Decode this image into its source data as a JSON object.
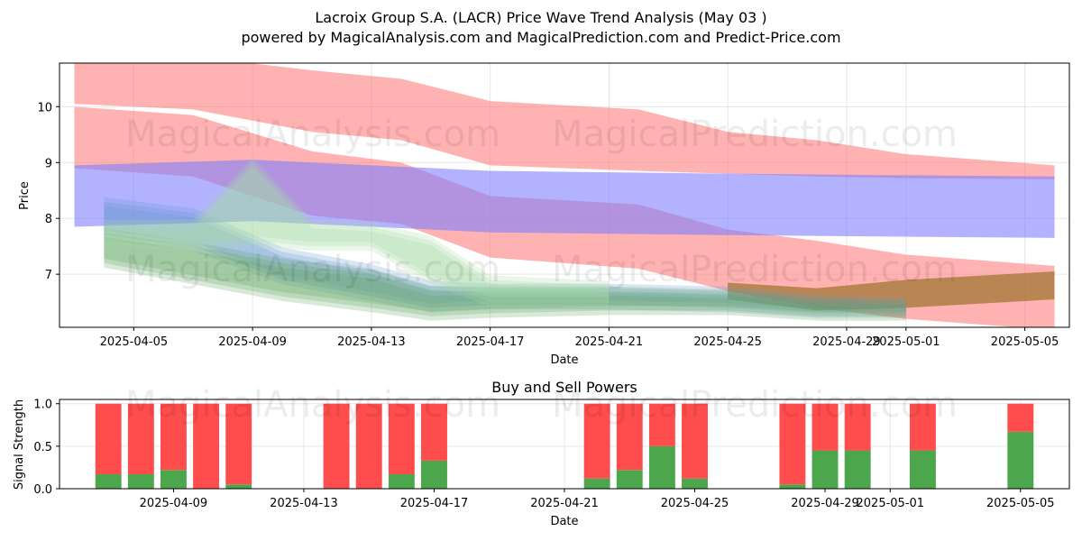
{
  "figure": {
    "title_line1": "Lacroix Group S.A. (LACR) Price Wave Trend Analysis (May 03 )",
    "title_line2": "powered by MagicalAnalysis.com and MagicalPrediction.com and Predict-Price.com",
    "watermarks": [
      "MagicalAnalysis.com",
      "MagicalPrediction.com"
    ]
  },
  "chart_data": [
    {
      "type": "area",
      "title": "",
      "xlabel": "Date",
      "ylabel": "Price",
      "xlim": [
        "2025-04-02T12:00",
        "2025-05-06T12:00"
      ],
      "ylim": [
        6.05,
        10.78
      ],
      "yticks": [
        7,
        8,
        9,
        10
      ],
      "xticks": [
        "2025-04-05",
        "2025-04-09",
        "2025-04-13",
        "2025-04-17",
        "2025-04-21",
        "2025-04-25",
        "2025-04-29",
        "2025-05-01",
        "2025-05-05"
      ],
      "grid": true,
      "bands": [
        {
          "color": "#ff7f7f",
          "opacity": 0.6,
          "x": [
            "2025-04-03",
            "2025-04-07",
            "2025-04-11",
            "2025-04-14",
            "2025-04-17",
            "2025-04-22",
            "2025-04-25",
            "2025-04-28",
            "2025-05-01",
            "2025-05-06"
          ],
          "upper": [
            10.85,
            10.9,
            10.65,
            10.5,
            10.1,
            9.95,
            9.55,
            9.4,
            9.15,
            8.95
          ],
          "lower": [
            10.05,
            9.95,
            9.55,
            9.4,
            8.95,
            8.85,
            8.8,
            8.75,
            8.72,
            8.7
          ]
        },
        {
          "color": "#ff7f7f",
          "opacity": 0.6,
          "x": [
            "2025-04-03",
            "2025-04-07",
            "2025-04-11",
            "2025-04-14",
            "2025-04-17",
            "2025-04-22",
            "2025-04-25",
            "2025-04-28",
            "2025-05-01",
            "2025-05-06"
          ],
          "upper": [
            10.0,
            9.85,
            9.2,
            9.0,
            8.4,
            8.25,
            7.8,
            7.6,
            7.35,
            7.15
          ],
          "lower": [
            8.9,
            8.75,
            8.05,
            7.9,
            7.3,
            7.1,
            6.7,
            6.4,
            6.2,
            6.0
          ]
        },
        {
          "color": "#7f7fff",
          "opacity": 0.6,
          "x": [
            "2025-04-03",
            "2025-04-09",
            "2025-04-17",
            "2025-04-25",
            "2025-05-06"
          ],
          "upper": [
            8.95,
            9.05,
            8.85,
            8.8,
            8.75
          ],
          "lower": [
            7.85,
            7.95,
            7.75,
            7.7,
            7.65
          ]
        },
        {
          "color": "#8b6914",
          "opacity": 0.6,
          "x": [
            "2025-04-25",
            "2025-04-28",
            "2025-05-01",
            "2025-05-06"
          ],
          "upper": [
            6.85,
            6.75,
            6.9,
            7.05
          ],
          "lower": [
            6.55,
            6.35,
            6.4,
            6.55
          ]
        }
      ],
      "wave_bands": [
        {
          "color": "#6699cc",
          "opacity": 0.35,
          "x": [
            "2025-04-04",
            "2025-04-07",
            "2025-04-10",
            "2025-04-13",
            "2025-04-15",
            "2025-04-17",
            "2025-04-21",
            "2025-04-25",
            "2025-04-28",
            "2025-05-01"
          ],
          "upper": [
            8.3,
            8.1,
            7.4,
            7.1,
            6.8,
            6.75,
            6.75,
            6.7,
            6.55,
            6.5
          ],
          "lower": [
            7.7,
            7.5,
            6.9,
            6.6,
            6.4,
            6.45,
            6.45,
            6.4,
            6.3,
            6.3
          ]
        },
        {
          "color": "#5fa35f",
          "opacity": 0.35,
          "x": [
            "2025-04-04",
            "2025-04-07",
            "2025-04-10",
            "2025-04-13",
            "2025-04-15",
            "2025-04-17",
            "2025-04-21",
            "2025-04-25",
            "2025-04-28",
            "2025-05-01"
          ],
          "upper": [
            7.75,
            7.5,
            7.2,
            7.0,
            6.7,
            6.7,
            6.7,
            6.65,
            6.5,
            6.45
          ],
          "lower": [
            7.2,
            6.9,
            6.6,
            6.4,
            6.25,
            6.3,
            6.35,
            6.35,
            6.25,
            6.25
          ]
        },
        {
          "color": "#a6d9a6",
          "opacity": 0.35,
          "x": [
            "2025-04-04",
            "2025-04-07",
            "2025-04-09",
            "2025-04-11",
            "2025-04-13",
            "2025-04-15",
            "2025-04-17",
            "2025-04-21"
          ],
          "upper": [
            7.9,
            7.9,
            9.0,
            7.9,
            7.85,
            7.6,
            6.9,
            6.8
          ],
          "lower": [
            7.6,
            7.5,
            7.6,
            7.5,
            7.5,
            6.9,
            6.5,
            6.5
          ]
        }
      ]
    },
    {
      "type": "bar",
      "title": "Buy and Sell Powers",
      "xlabel": "Date",
      "ylabel": "Signal Strength",
      "xlim": [
        "2025-04-05T12:00",
        "2025-05-06T12:00"
      ],
      "ylim": [
        0,
        1.05
      ],
      "yticks": [
        "0.0",
        "0.5",
        "1.0"
      ],
      "xticks": [
        "2025-04-09",
        "2025-04-13",
        "2025-04-17",
        "2025-04-21",
        "2025-04-25",
        "2025-04-29",
        "2025-05-01",
        "2025-05-05"
      ],
      "grid": true,
      "colors": {
        "buy": "#4ca64c",
        "sell": "#ff4c4c"
      },
      "dates": [
        "2025-04-07",
        "2025-04-08",
        "2025-04-09",
        "2025-04-10",
        "2025-04-11",
        "2025-04-14",
        "2025-04-15",
        "2025-04-16",
        "2025-04-17",
        "2025-04-22",
        "2025-04-23",
        "2025-04-24",
        "2025-04-25",
        "2025-04-28",
        "2025-04-29",
        "2025-04-30",
        "2025-05-02",
        "2025-05-05"
      ],
      "buy": [
        0.17,
        0.17,
        0.22,
        0.0,
        0.05,
        0.0,
        0.0,
        0.17,
        0.33,
        0.12,
        0.22,
        0.5,
        0.12,
        0.05,
        0.45,
        0.45,
        0.45,
        0.67
      ],
      "sell": [
        0.83,
        0.83,
        0.78,
        1.0,
        0.95,
        1.0,
        1.0,
        0.83,
        0.67,
        0.88,
        0.78,
        0.5,
        0.88,
        0.95,
        0.55,
        0.55,
        0.55,
        0.33
      ]
    }
  ]
}
